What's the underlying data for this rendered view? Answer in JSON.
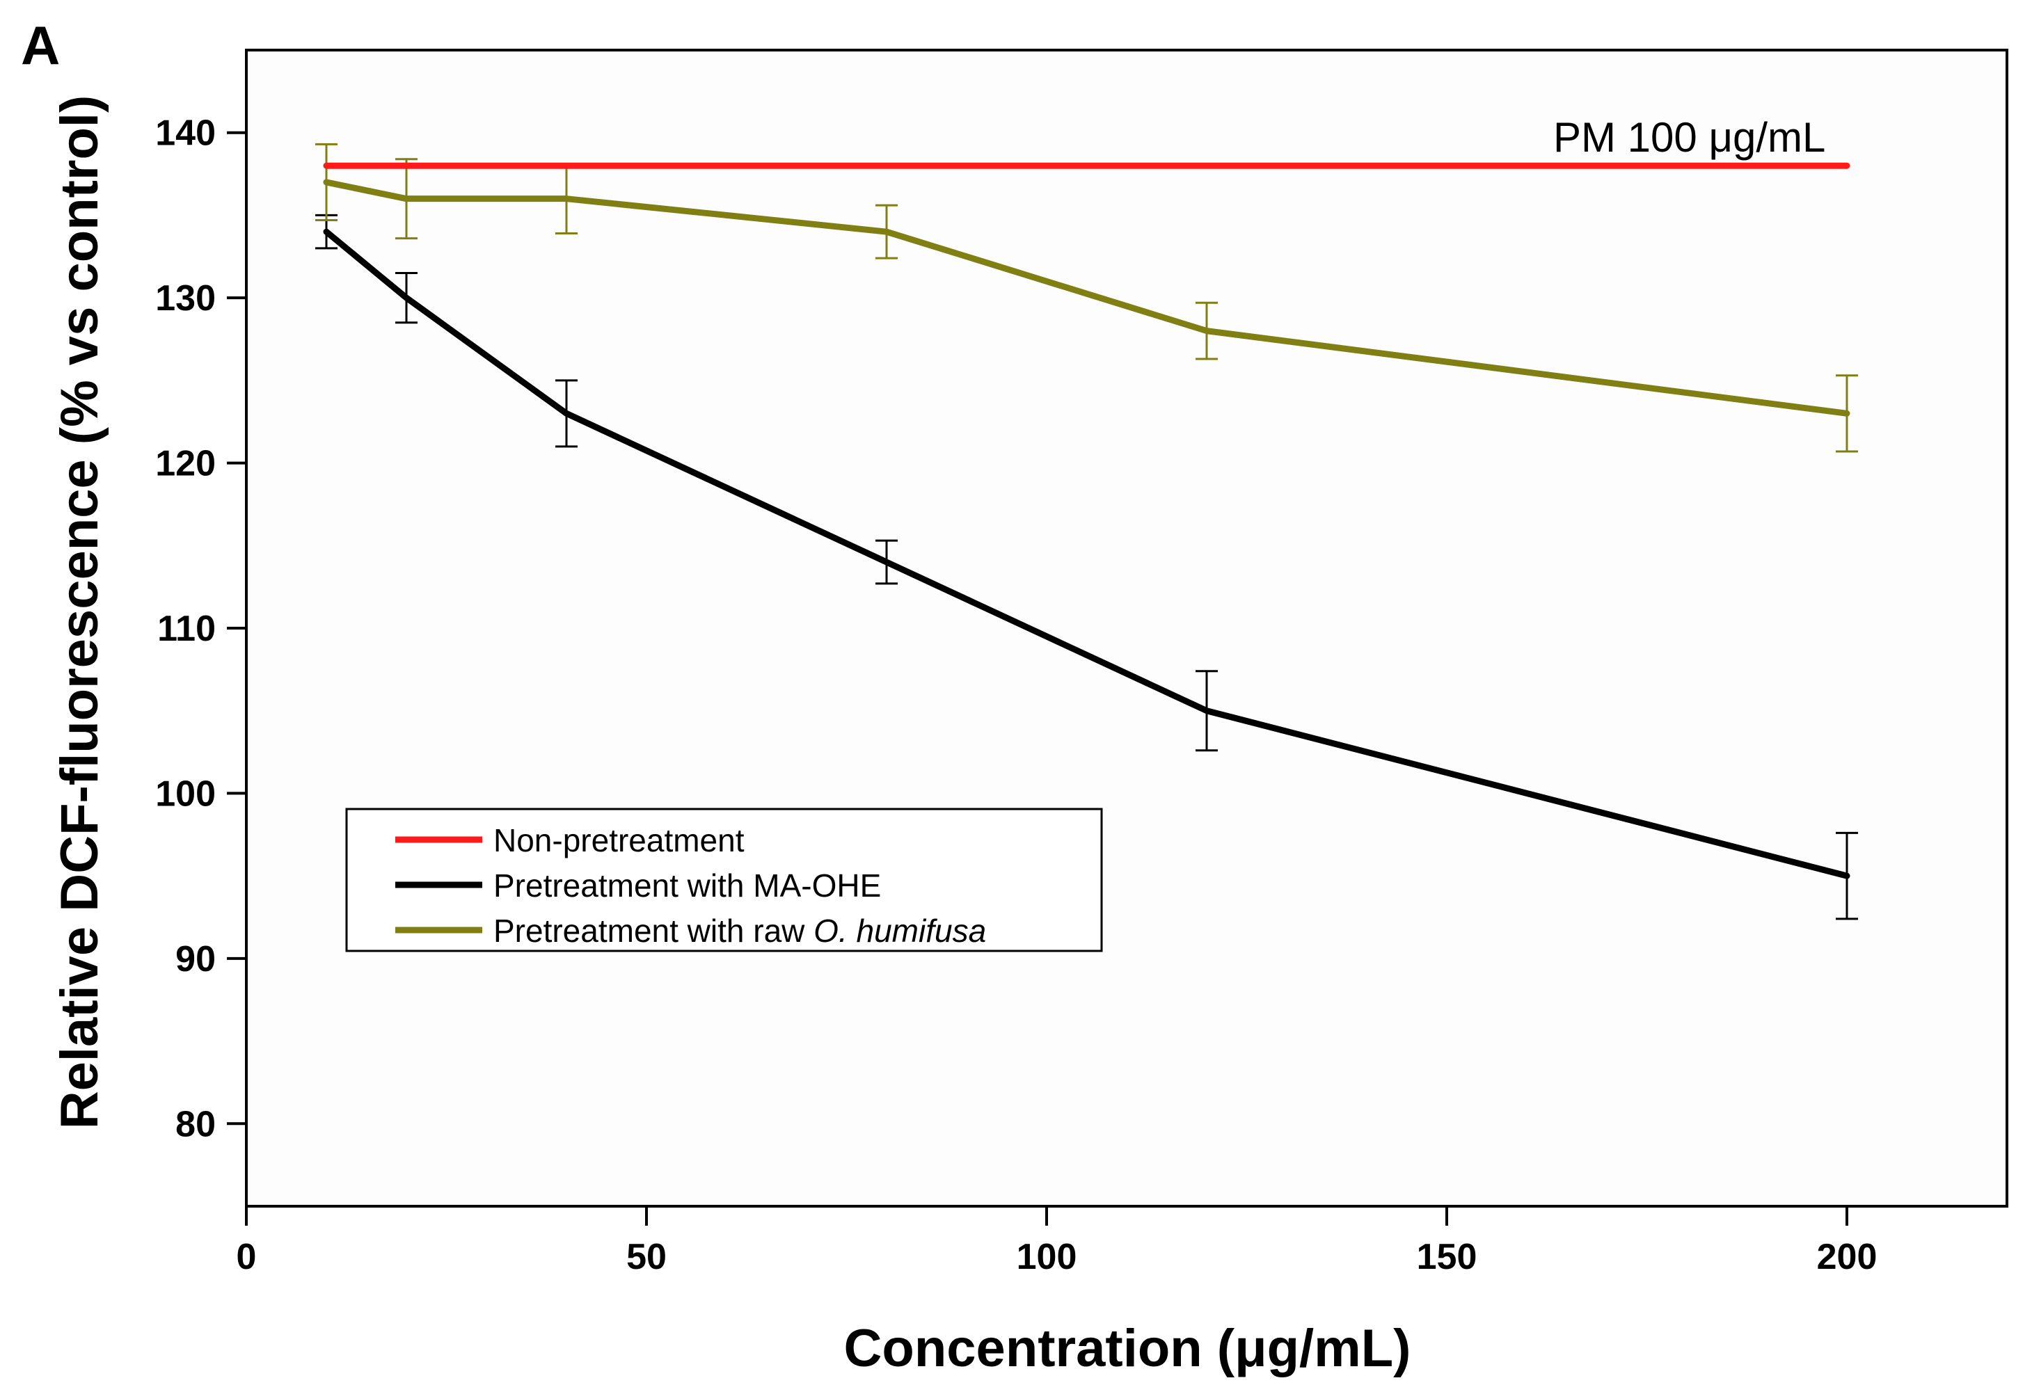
{
  "chart_data": {
    "type": "line",
    "panel_label": "A",
    "title": "",
    "xlabel": "Concentration (μg/mL)",
    "ylabel": "Relative DCF-fluorescence (% vs control)",
    "xlim": [
      0,
      220
    ],
    "ylim": [
      75,
      145
    ],
    "xticks": [
      0,
      50,
      100,
      150,
      200
    ],
    "yticks": [
      80,
      90,
      100,
      110,
      120,
      130,
      140
    ],
    "annotation": "PM 100 μg/mL",
    "grid": false,
    "legend_position": "lower-left",
    "series": [
      {
        "name": "Non-pretreatment",
        "color": "#ff1a1a",
        "x": [
          10,
          200
        ],
        "y": [
          138,
          138
        ],
        "err": [
          0,
          0
        ]
      },
      {
        "name": "Pretreatment with MA-OHE",
        "color": "#000000",
        "x": [
          10,
          20,
          40,
          80,
          120,
          200
        ],
        "y": [
          134,
          130,
          123,
          114,
          105,
          95
        ],
        "err": [
          1.0,
          1.5,
          2.0,
          1.3,
          2.4,
          2.6
        ]
      },
      {
        "name_prefix": "Pretreatment with raw ",
        "name_species": "O. humifusa",
        "color": "#7f7f14",
        "x": [
          10,
          20,
          40,
          80,
          120,
          200
        ],
        "y": [
          137,
          136,
          136,
          134,
          128,
          123
        ],
        "err": [
          2.3,
          2.4,
          2.1,
          1.6,
          1.7,
          2.3
        ]
      }
    ]
  }
}
